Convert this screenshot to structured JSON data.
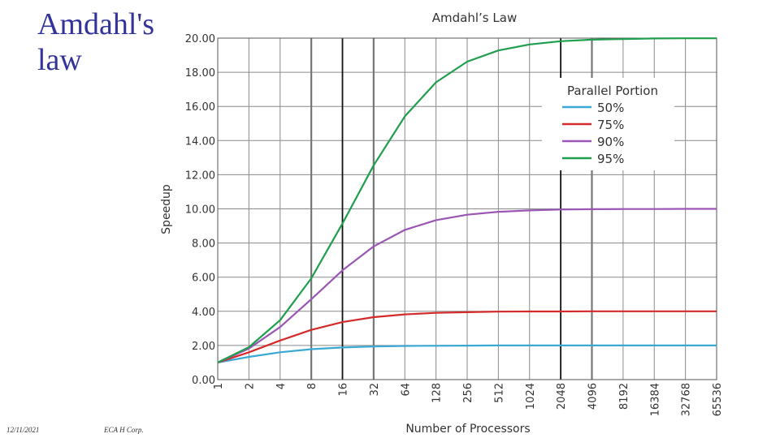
{
  "slide": {
    "title": "Amdahl's law",
    "footer_date": "12/11/2021",
    "footer_org": "ECA H Corp."
  },
  "chart_data": {
    "type": "line",
    "title": "Amdahl’s Law",
    "xlabel": "Number of Processors",
    "ylabel": "Speedup",
    "x_scale": "log2",
    "x": [
      1,
      2,
      4,
      8,
      16,
      32,
      64,
      128,
      256,
      512,
      1024,
      2048,
      4096,
      8192,
      16384,
      32768,
      65536
    ],
    "x_tick_labels": [
      "1",
      "2",
      "4",
      "8",
      "16",
      "32",
      "64",
      "128",
      "256",
      "512",
      "1024",
      "2048",
      "4096",
      "8192",
      "16384",
      "32768",
      "65536"
    ],
    "y_ticks": [
      "0.00",
      "2.00",
      "4.00",
      "6.00",
      "8.00",
      "10.00",
      "12.00",
      "14.00",
      "16.00",
      "18.00",
      "20.00"
    ],
    "ylim": [
      0,
      20
    ],
    "grid": true,
    "legend": {
      "title": "Parallel Portion",
      "position": "top-right"
    },
    "series": [
      {
        "name": "50%",
        "color": "#3aa8d4",
        "values": [
          1.0,
          1.33,
          1.6,
          1.78,
          1.88,
          1.94,
          1.97,
          1.98,
          1.99,
          2.0,
          2.0,
          2.0,
          2.0,
          2.0,
          2.0,
          2.0,
          2.0
        ]
      },
      {
        "name": "75%",
        "color": "#d42a2a",
        "values": [
          1.0,
          1.6,
          2.29,
          2.91,
          3.37,
          3.66,
          3.82,
          3.91,
          3.95,
          3.98,
          3.99,
          3.99,
          4.0,
          4.0,
          4.0,
          4.0,
          4.0
        ]
      },
      {
        "name": "90%",
        "color": "#9a56b4",
        "values": [
          1.0,
          1.82,
          3.08,
          4.71,
          6.4,
          7.8,
          8.77,
          9.34,
          9.66,
          9.83,
          9.91,
          9.96,
          9.98,
          9.99,
          9.99,
          10.0,
          10.0
        ]
      },
      {
        "name": "95%",
        "color": "#1f9e4e",
        "values": [
          1.0,
          1.9,
          3.48,
          5.93,
          9.14,
          12.55,
          15.42,
          17.41,
          18.62,
          19.28,
          19.63,
          19.82,
          19.91,
          19.95,
          19.98,
          19.99,
          19.99
        ]
      }
    ]
  }
}
